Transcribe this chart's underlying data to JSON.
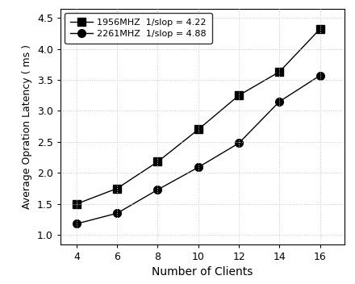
{
  "x": [
    4,
    6,
    8,
    10,
    12,
    14,
    16
  ],
  "series1_y": [
    1.5,
    1.75,
    2.18,
    2.7,
    3.25,
    3.63,
    4.32
  ],
  "series2_y": [
    1.18,
    1.35,
    1.73,
    2.09,
    2.48,
    3.15,
    3.57
  ],
  "series1_label": "1956MHZ  1/slop = 4.22",
  "series2_label": "2261MHZ  1/slop = 4.88",
  "xlabel": "Number of Clients",
  "ylabel": "Average Opration Latency ( ms )",
  "ylim": [
    0.85,
    4.65
  ],
  "xlim": [
    3.2,
    17.2
  ],
  "xticks": [
    4,
    6,
    8,
    10,
    12,
    14,
    16
  ],
  "yticks": [
    1.0,
    1.5,
    2.0,
    2.5,
    3.0,
    3.5,
    4.0,
    4.5
  ],
  "line_color": "#000000",
  "marker1": "s",
  "marker2": "o",
  "bg_color": "#ffffff",
  "grid_color": "#cccccc"
}
